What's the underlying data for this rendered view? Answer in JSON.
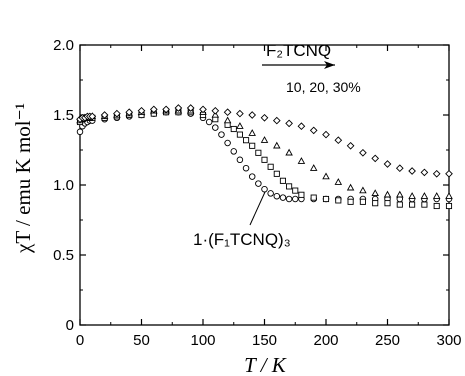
{
  "chart_data": {
    "type": "scatter",
    "title": "",
    "xlabel": "T / K",
    "ylabel": "χT / emu K mol⁻¹",
    "xlim": [
      0,
      300
    ],
    "ylim": [
      0,
      2.0
    ],
    "x_ticks": [
      "0",
      "50",
      "100",
      "150",
      "200",
      "250",
      "300"
    ],
    "y_ticks": [
      "0",
      "0.5",
      "1.0",
      "1.5",
      "2.0"
    ],
    "grid": false,
    "legend": "none",
    "annotations": {
      "arrow_label": "F₂TCNQ",
      "percent_label": "10, 20, 30%",
      "compound_label": "1·(F₁TCNQ)₃"
    },
    "series": [
      {
        "marker": "circle",
        "x": [
          0,
          2,
          4,
          6,
          8,
          10,
          20,
          30,
          40,
          50,
          60,
          70,
          80,
          90,
          100,
          105,
          110,
          115,
          120,
          125,
          130,
          135,
          140,
          145,
          150,
          155,
          160,
          165,
          170,
          175,
          180,
          190,
          200,
          210,
          220,
          230,
          240,
          250,
          260,
          270,
          280,
          290,
          300
        ],
        "y": [
          1.38,
          1.42,
          1.44,
          1.45,
          1.46,
          1.46,
          1.47,
          1.48,
          1.49,
          1.5,
          1.51,
          1.52,
          1.52,
          1.51,
          1.48,
          1.45,
          1.41,
          1.36,
          1.3,
          1.24,
          1.18,
          1.12,
          1.06,
          1.01,
          0.97,
          0.94,
          0.92,
          0.91,
          0.9,
          0.9,
          0.9,
          0.9,
          0.9,
          0.9,
          0.9,
          0.9,
          0.9,
          0.9,
          0.9,
          0.9,
          0.9,
          0.9,
          0.9
        ]
      },
      {
        "marker": "square",
        "x": [
          0,
          2,
          4,
          6,
          8,
          10,
          20,
          30,
          40,
          50,
          60,
          70,
          80,
          90,
          100,
          110,
          120,
          125,
          130,
          135,
          140,
          145,
          150,
          155,
          160,
          165,
          170,
          175,
          180,
          190,
          200,
          210,
          220,
          230,
          240,
          250,
          260,
          270,
          280,
          290,
          300
        ],
        "y": [
          1.45,
          1.47,
          1.48,
          1.48,
          1.48,
          1.48,
          1.48,
          1.49,
          1.5,
          1.5,
          1.51,
          1.52,
          1.52,
          1.52,
          1.5,
          1.47,
          1.43,
          1.4,
          1.36,
          1.32,
          1.28,
          1.23,
          1.18,
          1.13,
          1.08,
          1.03,
          0.99,
          0.96,
          0.93,
          0.91,
          0.9,
          0.89,
          0.88,
          0.88,
          0.87,
          0.87,
          0.86,
          0.86,
          0.86,
          0.85,
          0.85
        ]
      },
      {
        "marker": "triangle",
        "x": [
          0,
          2,
          4,
          6,
          8,
          10,
          20,
          30,
          40,
          50,
          60,
          70,
          80,
          90,
          100,
          110,
          120,
          130,
          140,
          150,
          160,
          170,
          180,
          190,
          200,
          210,
          220,
          230,
          240,
          250,
          260,
          270,
          280,
          290,
          300
        ],
        "y": [
          1.46,
          1.47,
          1.48,
          1.48,
          1.48,
          1.49,
          1.49,
          1.5,
          1.51,
          1.52,
          1.53,
          1.53,
          1.53,
          1.53,
          1.52,
          1.5,
          1.46,
          1.42,
          1.37,
          1.32,
          1.28,
          1.23,
          1.17,
          1.12,
          1.06,
          1.02,
          0.98,
          0.96,
          0.94,
          0.93,
          0.93,
          0.92,
          0.92,
          0.92,
          0.92
        ]
      },
      {
        "marker": "diamond",
        "x": [
          0,
          2,
          4,
          6,
          8,
          10,
          20,
          30,
          40,
          50,
          60,
          70,
          80,
          90,
          100,
          110,
          120,
          130,
          140,
          150,
          160,
          170,
          180,
          190,
          200,
          210,
          220,
          230,
          240,
          250,
          260,
          270,
          280,
          290,
          300
        ],
        "y": [
          1.47,
          1.48,
          1.48,
          1.49,
          1.49,
          1.49,
          1.5,
          1.51,
          1.52,
          1.53,
          1.54,
          1.54,
          1.55,
          1.55,
          1.54,
          1.53,
          1.52,
          1.51,
          1.5,
          1.48,
          1.46,
          1.44,
          1.42,
          1.39,
          1.36,
          1.32,
          1.28,
          1.23,
          1.19,
          1.15,
          1.12,
          1.1,
          1.09,
          1.08,
          1.08
        ]
      }
    ]
  }
}
